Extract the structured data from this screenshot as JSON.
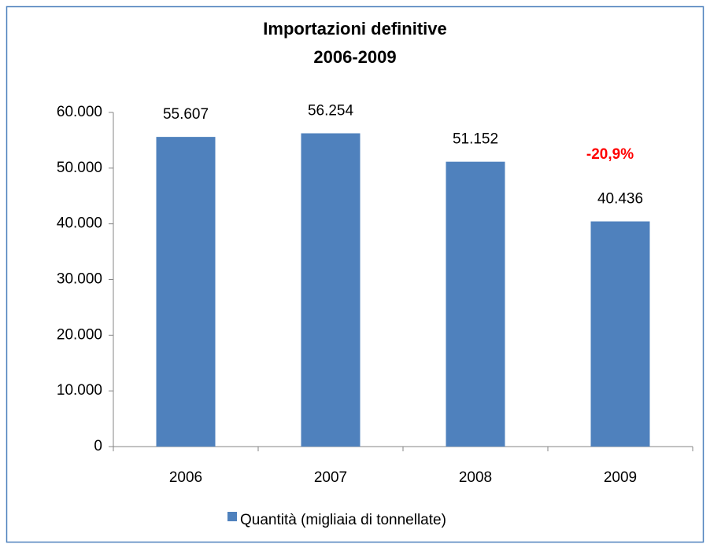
{
  "chart_data": {
    "type": "bar",
    "title": "Importazioni definitive",
    "subtitle": "2006-2009",
    "categories": [
      "2006",
      "2007",
      "2008",
      "2009"
    ],
    "series": [
      {
        "name": "Quantità (migliaia di tonnellate)",
        "color": "#4f81bd",
        "values": [
          55607,
          56254,
          51152,
          40436
        ],
        "value_labels": [
          "55.607",
          "56.254",
          "51.152",
          "40.436"
        ]
      }
    ],
    "ylim": [
      0,
      60000
    ],
    "yticks": [
      0,
      {
        "value": 10000,
        "label": "10.000"
      },
      {
        "value": 20000,
        "label": "20.000"
      },
      {
        "value": 30000,
        "label": "30.000"
      },
      {
        "value": 40000,
        "label": "40.000"
      },
      {
        "value": 50000,
        "label": "50.000"
      },
      {
        "value": 60000,
        "label": "60.000"
      }
    ],
    "annotations": [
      "-20,9%"
    ],
    "grid": false,
    "legend": "bottom"
  }
}
